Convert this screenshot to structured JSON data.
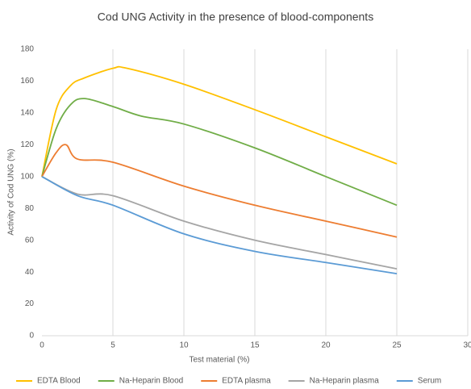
{
  "chart_data": {
    "type": "line",
    "title": "Cod UNG Activity in the presence of blood-components",
    "x_label": "Test material (%)",
    "y_label": "Activity of Cod UNG (%)",
    "xlim": [
      0,
      30
    ],
    "xticks": [
      0,
      5,
      10,
      15,
      20,
      25,
      30
    ],
    "ylim": [
      0,
      180
    ],
    "yticks": [
      0,
      20,
      40,
      60,
      80,
      100,
      120,
      140,
      160,
      180
    ],
    "grid": "vertical",
    "legend": "bottom",
    "series": [
      {
        "name": "EDTA Blood",
        "color": "#FFC000",
        "x": [
          0,
          1,
          2,
          3,
          5,
          6,
          10,
          15,
          20,
          25
        ],
        "values": [
          100,
          142,
          157,
          162,
          168,
          168,
          158,
          142,
          125,
          108
        ]
      },
      {
        "name": "Na-Heparin Blood",
        "color": "#70AD47",
        "x": [
          0,
          1,
          2,
          3,
          5,
          7,
          10,
          15,
          20,
          25
        ],
        "values": [
          100,
          130,
          145,
          149,
          144,
          138,
          133,
          118,
          100,
          82
        ]
      },
      {
        "name": "EDTA plasma",
        "color": "#ED7D31",
        "x": [
          0,
          1,
          1.7,
          2.5,
          5,
          10,
          15,
          20,
          25
        ],
        "values": [
          100,
          115,
          120,
          111,
          109,
          94,
          82,
          72,
          62
        ]
      },
      {
        "name": "Na-Heparin plasma",
        "color": "#A5A5A5",
        "x": [
          0,
          2.5,
          5,
          10,
          15,
          20,
          25
        ],
        "values": [
          100,
          89,
          88,
          72,
          60,
          51,
          42
        ]
      },
      {
        "name": "Serum",
        "color": "#5B9BD5",
        "x": [
          0,
          2.5,
          5,
          10,
          15,
          20,
          25
        ],
        "values": [
          100,
          88,
          82,
          64,
          53,
          46,
          39
        ]
      }
    ]
  }
}
